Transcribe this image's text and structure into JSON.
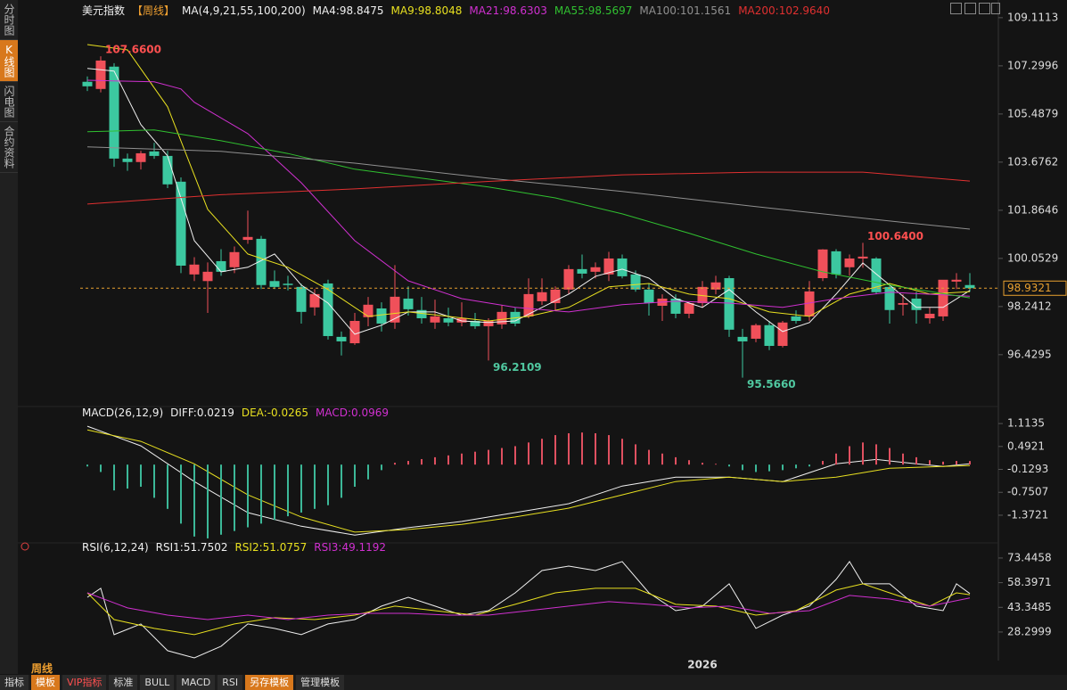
{
  "ui": {
    "sidebar": [
      "分时图",
      "K线图",
      "闪电图",
      "合约资料"
    ],
    "period": "周线",
    "toolbar": [
      "指标",
      "模板",
      "VIP指标",
      "标准",
      "BULL",
      "MACD",
      "RSI",
      "另存模板",
      "管理模板"
    ]
  },
  "chart_data": [
    {
      "type": "candlestick",
      "title": "美元指数",
      "subtitle": "【周线】",
      "indicator": "MA(4,9,21,55,100,200)",
      "categories": [
        null,
        null,
        null,
        null,
        null,
        null,
        null,
        null,
        null,
        null,
        null,
        null,
        null,
        null,
        null,
        null,
        null,
        null,
        null,
        null,
        null,
        null,
        null,
        null,
        null,
        null,
        null,
        null,
        null,
        null,
        null,
        null,
        null,
        null,
        null,
        null,
        null,
        null,
        null,
        null,
        null,
        null,
        null,
        null,
        null,
        null,
        "2026",
        null,
        null,
        null,
        null,
        null,
        null,
        null,
        null,
        null,
        null,
        null,
        null,
        null,
        null,
        null,
        null,
        null,
        null,
        null,
        null
      ],
      "open": [
        106.7,
        106.43,
        107.27,
        103.81,
        103.68,
        104.08,
        103.91,
        102.94,
        99.45,
        99.2,
        99.95,
        99.72,
        100.75,
        100.79,
        99.2,
        99.1,
        98.98,
        98.21,
        99.11,
        97.1,
        96.86,
        97.84,
        98.17,
        97.64,
        98.54,
        98.11,
        97.64,
        97.8,
        97.64,
        97.7,
        97.5,
        97.57,
        98.04,
        97.87,
        98.44,
        98.37,
        98.88,
        99.65,
        99.55,
        99.45,
        100.05,
        99.45,
        98.88,
        98.27,
        98.54,
        97.97,
        98.37,
        98.88,
        99.31,
        97.1,
        97.03,
        97.54,
        96.76,
        97.87,
        97.87,
        99.31,
        100.32,
        99.72,
        100.05,
        100.05,
        98.98,
        98.31,
        98.54,
        97.8,
        97.87,
        99.18,
        99.05
      ],
      "high": [
        106.9,
        107.66,
        107.4,
        104.0,
        104.1,
        104.4,
        104.1,
        103.1,
        100.1,
        99.9,
        100.4,
        100.5,
        101.85,
        100.9,
        99.6,
        99.4,
        99.1,
        98.9,
        99.25,
        97.3,
        98.0,
        98.6,
        98.4,
        99.8,
        99.0,
        98.6,
        98.5,
        98.2,
        98.4,
        98.0,
        97.8,
        98.3,
        98.2,
        99.3,
        99.3,
        99.0,
        99.8,
        100.2,
        99.9,
        100.3,
        100.2,
        99.6,
        99.1,
        98.7,
        98.7,
        98.4,
        99.2,
        99.4,
        99.4,
        97.4,
        97.6,
        97.7,
        97.7,
        98.1,
        99.2,
        100.4,
        100.4,
        100.2,
        100.64,
        100.1,
        99.1,
        98.7,
        98.8,
        98.2,
        99.2,
        99.5,
        99.5
      ],
      "low": [
        106.35,
        106.3,
        103.5,
        103.35,
        103.4,
        103.8,
        102.7,
        99.5,
        99.2,
        98.0,
        99.4,
        99.5,
        100.6,
        98.9,
        98.9,
        98.85,
        97.6,
        97.9,
        97.0,
        96.4,
        96.8,
        97.5,
        97.3,
        97.4,
        97.9,
        97.6,
        97.4,
        97.5,
        97.5,
        97.4,
        96.2109,
        97.4,
        97.5,
        97.8,
        98.3,
        98.1,
        98.7,
        99.3,
        99.3,
        99.2,
        99.3,
        98.8,
        97.9,
        97.7,
        97.8,
        97.8,
        98.2,
        98.7,
        97.1,
        95.566,
        96.9,
        96.6,
        96.7,
        97.6,
        97.7,
        99.2,
        99.3,
        99.4,
        99.7,
        98.7,
        97.6,
        97.9,
        97.6,
        97.6,
        97.7,
        98.9,
        98.8
      ],
      "close": [
        106.53,
        107.5,
        103.81,
        103.68,
        104.01,
        103.91,
        102.84,
        99.78,
        99.82,
        99.55,
        99.55,
        100.29,
        100.86,
        99.05,
        98.98,
        99.05,
        98.04,
        98.71,
        97.13,
        96.93,
        97.7,
        98.31,
        97.6,
        98.61,
        98.14,
        97.8,
        97.87,
        97.64,
        97.8,
        97.5,
        97.7,
        98.04,
        97.6,
        98.71,
        98.78,
        98.88,
        99.65,
        99.48,
        99.72,
        100.05,
        99.38,
        98.88,
        98.37,
        98.54,
        97.97,
        98.37,
        98.98,
        99.15,
        97.37,
        96.93,
        97.54,
        96.76,
        97.64,
        97.7,
        98.81,
        100.39,
        99.45,
        100.05,
        100.12,
        98.78,
        98.11,
        98.37,
        98.11,
        97.97,
        99.25,
        99.25,
        98.9321
      ],
      "up_color": "#f0505a",
      "down_color": "#3cc8a0",
      "price_line_color": "#e8a030",
      "series": [
        {
          "name": "MA4:98.8475",
          "color": "#f0f0f0",
          "x": [
            0,
            2,
            4,
            6,
            8,
            10,
            12,
            14,
            16,
            18,
            20,
            22,
            24,
            26,
            28,
            30,
            32,
            34,
            36,
            38,
            40,
            42,
            44,
            46,
            48,
            50,
            52,
            54,
            56,
            58,
            60,
            62,
            64,
            66
          ],
          "values": [
            107.2,
            107.1,
            105.09,
            103.91,
            100.72,
            99.55,
            99.72,
            100.22,
            99.05,
            98.37,
            97.2,
            97.54,
            98.04,
            98.04,
            97.7,
            97.64,
            97.7,
            98.21,
            98.71,
            99.38,
            99.65,
            99.31,
            98.54,
            98.21,
            98.88,
            98.04,
            97.3,
            97.64,
            98.71,
            99.88,
            99.05,
            98.21,
            98.21,
            98.8475
          ]
        },
        {
          "name": "MA9:98.8048",
          "color": "#e8e020",
          "x": [
            0,
            3,
            6,
            9,
            12,
            15,
            18,
            21,
            24,
            27,
            30,
            33,
            36,
            39,
            42,
            45,
            48,
            51,
            54,
            57,
            60,
            63,
            66
          ],
          "values": [
            108.1,
            107.9,
            105.76,
            101.9,
            100.22,
            99.72,
            98.88,
            97.87,
            98.04,
            97.87,
            97.7,
            97.87,
            98.21,
            98.98,
            99.11,
            98.71,
            98.54,
            98.04,
            97.87,
            98.71,
            99.11,
            98.71,
            98.8048
          ]
        },
        {
          "name": "MA21:98.6303",
          "color": "#d030d0",
          "x": [
            0,
            5,
            7,
            8,
            12,
            16,
            20,
            24,
            28,
            32,
            36,
            40,
            44,
            48,
            52,
            56,
            60,
            66
          ],
          "values": [
            106.76,
            106.7,
            106.43,
            105.93,
            104.75,
            102.9,
            100.72,
            99.21,
            98.54,
            98.21,
            98.04,
            98.31,
            98.44,
            98.37,
            98.21,
            98.54,
            98.78,
            98.6303
          ]
        },
        {
          "name": "MA55:98.5697",
          "color": "#30c030",
          "x": [
            0,
            5,
            10,
            15,
            20,
            25,
            30,
            35,
            40,
            45,
            50,
            55,
            60,
            66
          ],
          "values": [
            104.82,
            104.89,
            104.48,
            104.0,
            103.41,
            103.07,
            102.74,
            102.33,
            101.73,
            101.0,
            100.22,
            99.55,
            99.05,
            98.5697
          ]
        },
        {
          "name": "MA100:101.1561",
          "color": "#909090",
          "x": [
            0,
            10,
            20,
            30,
            40,
            50,
            60,
            66
          ],
          "values": [
            104.25,
            104.08,
            103.64,
            103.07,
            102.57,
            102.0,
            101.46,
            101.1561
          ]
        },
        {
          "name": "MA200:102.9640",
          "color": "#e03030",
          "x": [
            0,
            10,
            20,
            30,
            40,
            50,
            58,
            66
          ],
          "values": [
            102.1,
            102.45,
            102.67,
            102.95,
            103.2,
            103.3,
            103.3,
            102.964
          ]
        }
      ],
      "annotations": [
        {
          "value": 107.66,
          "label": "107.6600",
          "color": "#ff5050"
        },
        {
          "value": 96.2109,
          "label": "96.2109",
          "color": "#50c8a0"
        },
        {
          "value": 95.566,
          "label": "95.5660",
          "color": "#50c8a0"
        },
        {
          "value": 100.64,
          "label": "100.6400",
          "color": "#ff5050"
        }
      ],
      "ylim": [
        94.68,
        109.51
      ],
      "yticks": [
        109.1113,
        107.2996,
        105.4879,
        103.6762,
        101.8646,
        100.0529,
        98.2412,
        96.4295
      ],
      "grid": false
    },
    {
      "type": "macd",
      "title": "MACD(26,12,9)",
      "series": [
        {
          "name": "DIFF:0.0219",
          "color": "#f0f0f0",
          "x": [
            0,
            4,
            8,
            12,
            16,
            20,
            24,
            28,
            32,
            36,
            40,
            44,
            48,
            52,
            56,
            59,
            62,
            64,
            66
          ],
          "values": [
            1.04,
            0.51,
            -0.46,
            -1.3,
            -1.67,
            -1.91,
            -1.71,
            -1.54,
            -1.3,
            -1.06,
            -0.58,
            -0.34,
            -0.34,
            -0.46,
            0.02,
            0.14,
            0.02,
            -0.05,
            0.0219
          ]
        },
        {
          "name": "DEA:-0.0265",
          "color": "#e8e020",
          "x": [
            0,
            4,
            8,
            12,
            16,
            20,
            24,
            28,
            32,
            36,
            40,
            44,
            48,
            52,
            56,
            60,
            64,
            66
          ],
          "values": [
            0.94,
            0.63,
            0.02,
            -0.82,
            -1.42,
            -1.83,
            -1.76,
            -1.62,
            -1.42,
            -1.18,
            -0.82,
            -0.46,
            -0.34,
            -0.46,
            -0.34,
            -0.1,
            -0.05,
            -0.0265
          ]
        },
        {
          "name": "MACD:0.0969",
          "color": "#d030d0",
          "kind": "bar",
          "pos_color": "#e05060",
          "neg_color": "#3cb898",
          "values": [
            -0.05,
            -0.2,
            -0.7,
            -0.65,
            -0.6,
            -0.9,
            -1.2,
            -1.6,
            -1.95,
            -2.0,
            -1.9,
            -1.8,
            -1.7,
            -1.6,
            -1.5,
            -1.4,
            -1.3,
            -1.2,
            -1.1,
            -0.9,
            -0.6,
            -0.4,
            -0.15,
            0.05,
            0.1,
            0.15,
            0.2,
            0.25,
            0.3,
            0.35,
            0.4,
            0.45,
            0.5,
            0.6,
            0.7,
            0.8,
            0.85,
            0.87,
            0.85,
            0.8,
            0.7,
            0.55,
            0.4,
            0.3,
            0.2,
            0.12,
            0.05,
            0.02,
            -0.05,
            -0.15,
            -0.2,
            -0.18,
            -0.15,
            -0.1,
            -0.05,
            0.1,
            0.3,
            0.5,
            0.6,
            0.55,
            0.45,
            0.3,
            0.2,
            0.12,
            0.08,
            0.1,
            0.0969
          ]
        }
      ],
      "ylim": [
        -2.05,
        1.43
      ],
      "yticks": [
        1.1135,
        0.4921,
        -0.1293,
        -0.7507,
        -1.3721
      ],
      "grid": false
    },
    {
      "type": "rsi",
      "title": "RSI(6,12,24)",
      "series": [
        {
          "name": "RSI1:51.7502",
          "color": "#f0f0f0",
          "x": [
            0,
            1,
            2,
            4,
            6,
            8,
            10,
            12,
            14,
            16,
            18,
            20,
            22,
            24,
            26,
            28,
            30,
            32,
            34,
            36,
            38,
            40,
            42,
            44,
            46,
            48,
            50,
            52,
            54,
            56,
            57,
            58,
            60,
            62,
            64,
            65,
            66
          ],
          "values": [
            49.5,
            55.0,
            26.7,
            33.2,
            16.9,
            12.5,
            19.6,
            33.2,
            30.5,
            26.7,
            33.2,
            35.9,
            44.1,
            49.5,
            44.1,
            38.6,
            41.3,
            52.2,
            65.8,
            68.5,
            65.8,
            71.3,
            52.2,
            41.3,
            44.1,
            57.7,
            30.5,
            38.6,
            44.1,
            60.4,
            71.3,
            57.7,
            57.7,
            44.1,
            41.3,
            57.7,
            51.7502
          ]
        },
        {
          "name": "RSI2:51.0757",
          "color": "#e8e020",
          "x": [
            0,
            2,
            5,
            8,
            11,
            14,
            17,
            20,
            23,
            26,
            29,
            32,
            35,
            38,
            41,
            44,
            47,
            50,
            53,
            56,
            58,
            60,
            63,
            65,
            66
          ],
          "values": [
            52.2,
            35.9,
            30.5,
            26.7,
            33.2,
            37.0,
            35.9,
            38.6,
            44.1,
            41.3,
            38.6,
            45.2,
            52.2,
            55.0,
            55.0,
            45.2,
            44.1,
            38.6,
            41.3,
            53.9,
            57.7,
            52.2,
            44.1,
            52.2,
            51.0757
          ]
        },
        {
          "name": "RSI3:49.1192",
          "color": "#d030d0",
          "x": [
            0,
            3,
            6,
            9,
            12,
            15,
            18,
            21,
            24,
            27,
            30,
            33,
            36,
            39,
            42,
            45,
            48,
            51,
            54,
            57,
            60,
            63,
            66
          ],
          "values": [
            52.2,
            43.0,
            38.6,
            35.9,
            38.6,
            35.9,
            38.6,
            39.7,
            39.7,
            38.6,
            38.6,
            41.3,
            44.1,
            46.8,
            45.2,
            43.0,
            44.1,
            39.7,
            41.3,
            50.6,
            48.4,
            44.1,
            49.1192
          ]
        }
      ],
      "ylim": [
        11.4,
        79.4
      ],
      "yticks": [
        73.4458,
        58.3971,
        43.3485,
        28.2999
      ],
      "grid": false
    }
  ]
}
